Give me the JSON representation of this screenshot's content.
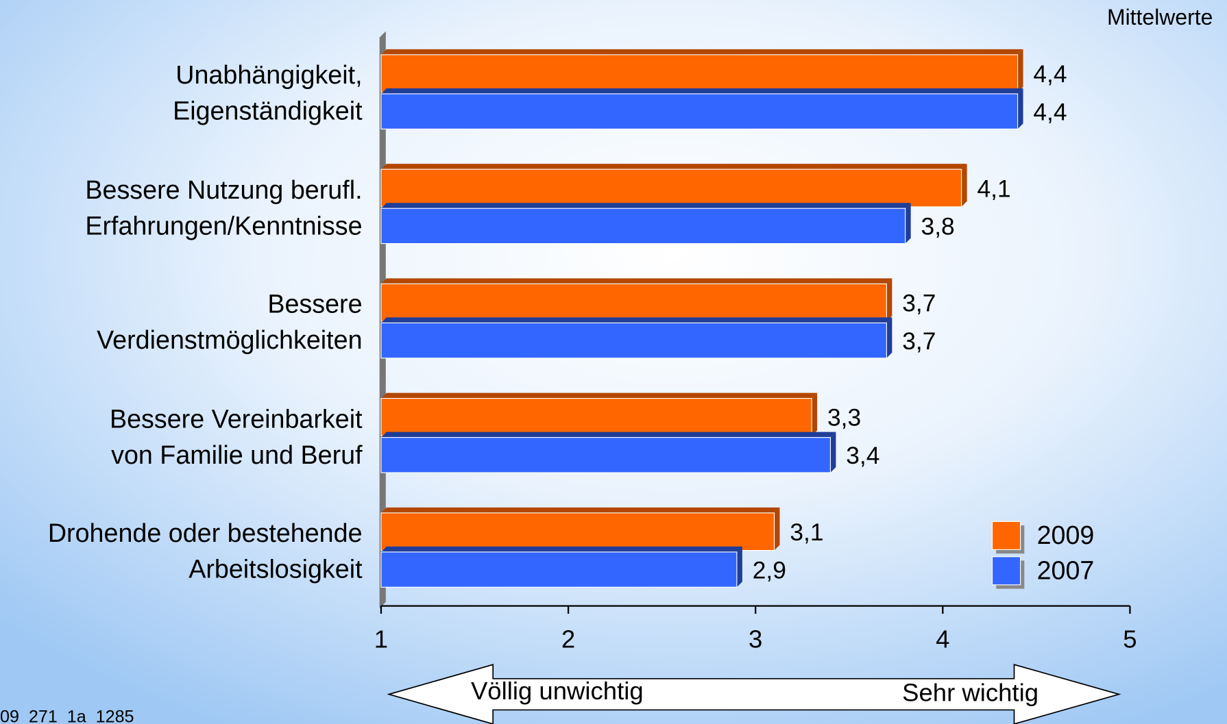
{
  "chart_data": {
    "type": "bar",
    "orientation": "horizontal",
    "note": "Mittelwerte",
    "categories": [
      "Unabhängigkeit,\nEigenständigkeit",
      "Bessere Nutzung berufl.\nErfahrungen/Kenntnisse",
      "Bessere\nVerdienstmöglichkeiten",
      "Bessere Vereinbarkeit\nvon Familie und Beruf",
      "Drohende oder bestehende\nArbeitslosigkeit"
    ],
    "series": [
      {
        "name": "2009",
        "color": "#ff6600",
        "values": [
          4.4,
          4.1,
          3.7,
          3.3,
          3.1
        ],
        "value_labels": [
          "4,4",
          "4,1",
          "3,7",
          "3,3",
          "3,1"
        ]
      },
      {
        "name": "2007",
        "color": "#3366ff",
        "values": [
          4.4,
          3.8,
          3.7,
          3.4,
          2.9
        ],
        "value_labels": [
          "4,4",
          "3,8",
          "3,7",
          "3,4",
          "2,9"
        ]
      }
    ],
    "xlim": [
      1,
      5
    ],
    "xticks": [
      1,
      2,
      3,
      4,
      5
    ],
    "scale_labels": [
      "Völlig unwichtig",
      "Sehr wichtig"
    ],
    "footnote": "09_271_1a_1285"
  }
}
